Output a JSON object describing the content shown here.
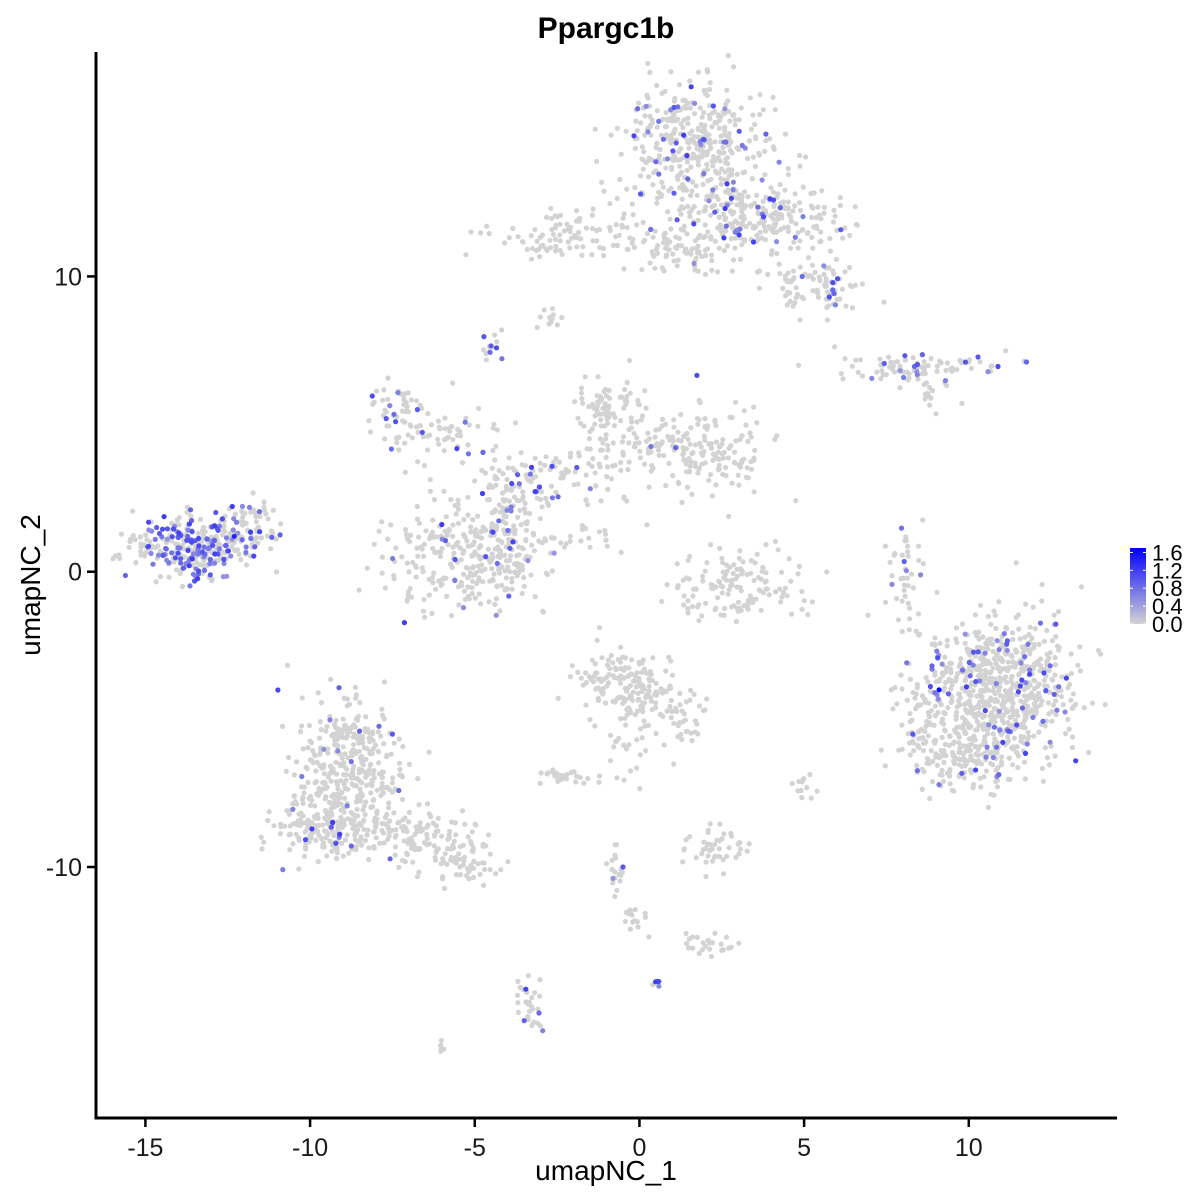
{
  "chart_data": {
    "type": "scatter",
    "title": "Ppargc1b",
    "xlabel": "umapNC_1",
    "ylabel": "umapNC_2",
    "xlim": [
      -16.5,
      14.5
    ],
    "ylim": [
      -18.5,
      17.6
    ],
    "x_ticks": [
      -15,
      -10,
      -5,
      0,
      5,
      10
    ],
    "x_tick_labels": [
      "-15",
      "-10",
      "-5",
      "0",
      "5",
      "10"
    ],
    "y_ticks": [
      -10,
      0,
      10
    ],
    "y_tick_labels": [
      "-10",
      "0",
      "10"
    ],
    "grid": false,
    "legend": {
      "placement": "right",
      "type": "colorbar",
      "ticks": [
        0.0,
        0.4,
        0.8,
        1.2,
        1.6
      ],
      "tick_labels": [
        "0.0",
        "0.4",
        "0.8",
        "1.2",
        "1.6"
      ],
      "range": [
        0,
        1.7
      ],
      "low_color": "#d3d3d3",
      "high_color": "#0000ff"
    },
    "clusters": [
      {
        "cx": 1.6,
        "cy": 14.5,
        "sx": 1.1,
        "sy": 1.0,
        "n": 380,
        "expr_frac": 0.12
      },
      {
        "cx": 3.0,
        "cy": 12.3,
        "sx": 1.0,
        "sy": 0.6,
        "n": 140,
        "expr_frac": 0.12
      },
      {
        "cx": 4.5,
        "cy": 11.8,
        "sx": 1.0,
        "sy": 0.5,
        "n": 100,
        "expr_frac": 0.06
      },
      {
        "cx": 5.5,
        "cy": 9.8,
        "sx": 0.7,
        "sy": 0.5,
        "n": 90,
        "expr_frac": 0.06
      },
      {
        "cx": 1.5,
        "cy": 11.0,
        "sx": 1.2,
        "sy": 0.5,
        "n": 110,
        "expr_frac": 0.02
      },
      {
        "cx": -2.2,
        "cy": 11.4,
        "sx": 1.1,
        "sy": 0.5,
        "n": 90,
        "expr_frac": 0.0
      },
      {
        "cx": -2.7,
        "cy": 8.6,
        "sx": 0.2,
        "sy": 0.2,
        "n": 12,
        "expr_frac": 0.0
      },
      {
        "cx": -4.5,
        "cy": 7.4,
        "sx": 0.2,
        "sy": 0.3,
        "n": 14,
        "expr_frac": 0.4
      },
      {
        "cx": 8.5,
        "cy": 6.9,
        "sx": 1.3,
        "sy": 0.2,
        "n": 90,
        "expr_frac": 0.15
      },
      {
        "cx": 8.8,
        "cy": 6.0,
        "sx": 0.3,
        "sy": 0.3,
        "n": 14,
        "expr_frac": 0.0
      },
      {
        "cx": -7.3,
        "cy": 5.5,
        "sx": 0.5,
        "sy": 0.5,
        "n": 45,
        "expr_frac": 0.12
      },
      {
        "cx": -6.0,
        "cy": 4.6,
        "sx": 0.9,
        "sy": 0.5,
        "n": 55,
        "expr_frac": 0.03
      },
      {
        "cx": -1.0,
        "cy": 5.5,
        "sx": 0.5,
        "sy": 0.5,
        "n": 70,
        "expr_frac": 0.0
      },
      {
        "cx": 0.2,
        "cy": 4.4,
        "sx": 1.0,
        "sy": 0.5,
        "n": 80,
        "expr_frac": 0.0
      },
      {
        "cx": 2.2,
        "cy": 4.0,
        "sx": 0.8,
        "sy": 0.7,
        "n": 130,
        "expr_frac": 0.02
      },
      {
        "cx": -2.6,
        "cy": 3.2,
        "sx": 1.2,
        "sy": 0.5,
        "n": 90,
        "expr_frac": 0.1
      },
      {
        "cx": -4.0,
        "cy": 2.4,
        "sx": 0.5,
        "sy": 0.6,
        "n": 45,
        "expr_frac": 0.2
      },
      {
        "cx": -5.5,
        "cy": 0.4,
        "sx": 1.1,
        "sy": 0.9,
        "n": 240,
        "expr_frac": 0.02
      },
      {
        "cx": -4.0,
        "cy": 0.7,
        "sx": 0.5,
        "sy": 0.8,
        "n": 90,
        "expr_frac": 0.12
      },
      {
        "cx": -2.0,
        "cy": 1.2,
        "sx": 0.8,
        "sy": 0.3,
        "n": 25,
        "expr_frac": 0.0
      },
      {
        "cx": -13.5,
        "cy": 0.9,
        "sx": 0.9,
        "sy": 0.5,
        "n": 300,
        "expr_frac": 0.4
      },
      {
        "cx": -11.9,
        "cy": 1.5,
        "sx": 0.6,
        "sy": 0.4,
        "n": 60,
        "expr_frac": 0.25
      },
      {
        "cx": 3.0,
        "cy": -0.5,
        "sx": 1.0,
        "sy": 0.6,
        "n": 140,
        "expr_frac": 0.01
      },
      {
        "cx": 8.0,
        "cy": -0.2,
        "sx": 0.3,
        "sy": 0.9,
        "n": 40,
        "expr_frac": 0.05
      },
      {
        "cx": 11.0,
        "cy": -4.0,
        "sx": 1.2,
        "sy": 1.2,
        "n": 700,
        "expr_frac": 0.07
      },
      {
        "cx": 9.8,
        "cy": -6.2,
        "sx": 0.8,
        "sy": 0.6,
        "n": 150,
        "expr_frac": 0.04
      },
      {
        "cx": 8.7,
        "cy": -5.2,
        "sx": 0.4,
        "sy": 0.8,
        "n": 50,
        "expr_frac": 0.05
      },
      {
        "cx": -0.4,
        "cy": -3.8,
        "sx": 0.8,
        "sy": 0.6,
        "n": 150,
        "expr_frac": 0.0
      },
      {
        "cx": 1.0,
        "cy": -4.8,
        "sx": 0.6,
        "sy": 0.6,
        "n": 60,
        "expr_frac": 0.0
      },
      {
        "cx": -0.6,
        "cy": -6.0,
        "sx": 0.3,
        "sy": 0.6,
        "n": 20,
        "expr_frac": 0.0
      },
      {
        "cx": -2.3,
        "cy": -6.9,
        "sx": 0.4,
        "sy": 0.2,
        "n": 30,
        "expr_frac": 0.0
      },
      {
        "cx": -8.8,
        "cy": -7.0,
        "sx": 0.8,
        "sy": 1.2,
        "n": 350,
        "expr_frac": 0.03
      },
      {
        "cx": -9.8,
        "cy": -8.8,
        "sx": 0.6,
        "sy": 0.5,
        "n": 120,
        "expr_frac": 0.05
      },
      {
        "cx": -7.3,
        "cy": -8.8,
        "sx": 0.9,
        "sy": 0.5,
        "n": 120,
        "expr_frac": 0.0
      },
      {
        "cx": -5.3,
        "cy": -9.7,
        "sx": 0.7,
        "sy": 0.4,
        "n": 70,
        "expr_frac": 0.02
      },
      {
        "cx": -8.9,
        "cy": -5.4,
        "sx": 0.5,
        "sy": 0.3,
        "n": 40,
        "expr_frac": 0.05
      },
      {
        "cx": 2.2,
        "cy": -9.3,
        "sx": 0.5,
        "sy": 0.4,
        "n": 45,
        "expr_frac": 0.0
      },
      {
        "cx": 5.0,
        "cy": -7.2,
        "sx": 0.2,
        "sy": 0.3,
        "n": 12,
        "expr_frac": 0.0
      },
      {
        "cx": 2.1,
        "cy": -12.6,
        "sx": 0.5,
        "sy": 0.2,
        "n": 25,
        "expr_frac": 0.0
      },
      {
        "cx": -0.1,
        "cy": -11.8,
        "sx": 0.2,
        "sy": 0.3,
        "n": 15,
        "expr_frac": 0.0
      },
      {
        "cx": -0.7,
        "cy": -10.0,
        "sx": 0.1,
        "sy": 0.6,
        "n": 18,
        "expr_frac": 0.05
      },
      {
        "cx": -3.4,
        "cy": -14.6,
        "sx": 0.2,
        "sy": 0.6,
        "n": 30,
        "expr_frac": 0.1
      },
      {
        "cx": 0.6,
        "cy": -14.0,
        "sx": 0.1,
        "sy": 0.1,
        "n": 5,
        "expr_frac": 0.6
      },
      {
        "cx": -6.0,
        "cy": -16.0,
        "sx": 0.1,
        "sy": 0.1,
        "n": 5,
        "expr_frac": 0.0
      }
    ],
    "highlighted_points": [
      {
        "x": 9.1,
        "y": -4.0,
        "value": 1.6
      },
      {
        "x": -12.3,
        "y": 1.2,
        "value": 1.4
      },
      {
        "x": -6.0,
        "y": 1.6,
        "value": 1.2
      },
      {
        "x": 2.6,
        "y": 12.3,
        "value": 1.2
      },
      {
        "x": -7.5,
        "y": -5.5,
        "value": 1.0
      },
      {
        "x": -3.5,
        "y": -15.2,
        "value": 0.9
      },
      {
        "x": 9.9,
        "y": 7.1,
        "value": 1.0
      },
      {
        "x": 11.2,
        "y": -5.4,
        "value": 1.0
      },
      {
        "x": 10.5,
        "y": -4.7,
        "value": 1.1
      },
      {
        "x": -13.6,
        "y": 1.0,
        "value": 1.1
      },
      {
        "x": -12.8,
        "y": 0.6,
        "value": 1.0
      },
      {
        "x": 1.1,
        "y": 4.2,
        "value": 0.9
      },
      {
        "x": -0.5,
        "y": -10.0,
        "value": 1.0
      }
    ]
  }
}
